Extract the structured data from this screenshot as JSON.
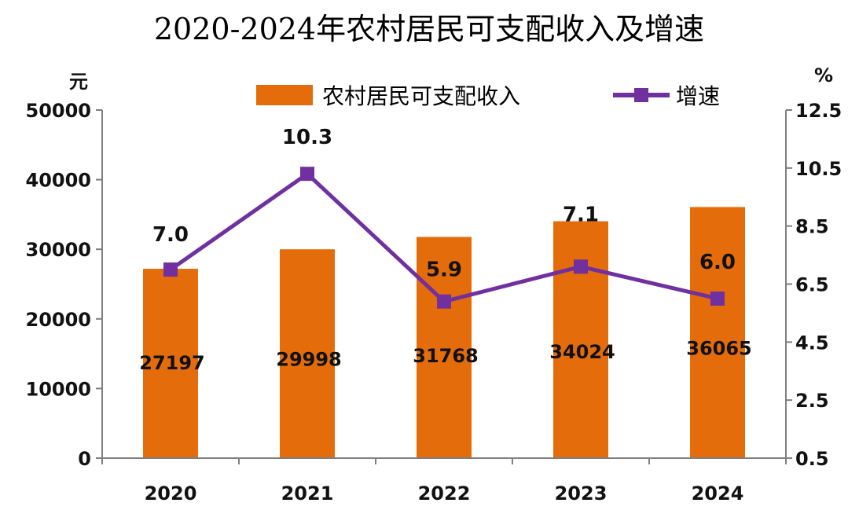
{
  "chart_data": {
    "type": "bar",
    "title": "2020-2024年农村居民可支配收入及增速",
    "categories": [
      "2020",
      "2021",
      "2022",
      "2023",
      "2024"
    ],
    "series": [
      {
        "name": "农村居民可支配收入",
        "type": "bar",
        "axis": "left",
        "color": "#E46C0A",
        "values": [
          27197,
          29998,
          31768,
          34024,
          36065
        ],
        "labels": [
          "27197",
          "29998",
          "31768",
          "34024",
          "36065"
        ]
      },
      {
        "name": "增速",
        "type": "line",
        "axis": "right",
        "color": "#7030A0",
        "values": [
          7.0,
          10.3,
          5.9,
          7.1,
          6.0
        ],
        "labels": [
          "7.0",
          "10.3",
          "5.9",
          "7.1",
          "6.0"
        ]
      }
    ],
    "y_left": {
      "unit": "元",
      "ylim": [
        0,
        50000
      ],
      "ticks": [
        "0",
        "10000",
        "20000",
        "30000",
        "40000",
        "50000"
      ]
    },
    "y_right": {
      "unit": "%",
      "ylim": [
        0.5,
        12.5
      ],
      "ticks": [
        "0.5",
        "2.5",
        "4.5",
        "6.5",
        "8.5",
        "10.5",
        "12.5"
      ]
    },
    "legend_position": "top-center",
    "grid": false
  }
}
